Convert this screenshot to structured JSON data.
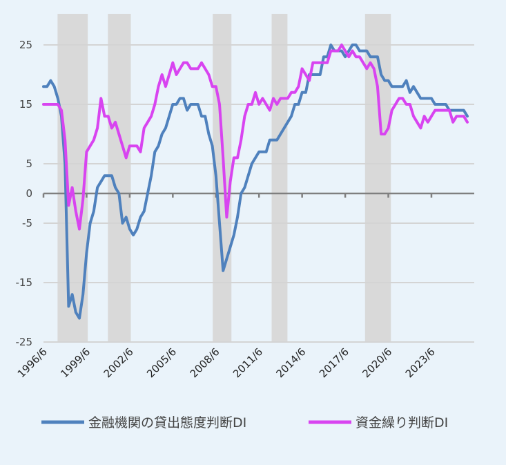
{
  "chart_data": {
    "type": "line",
    "title": "",
    "xlabel": "",
    "ylabel": "",
    "ylim": [
      -25,
      30
    ],
    "yticks": [
      25,
      15,
      5,
      0,
      -5,
      -15,
      -25
    ],
    "xlim": [
      1996.42,
      2026.4
    ],
    "xticks": [
      {
        "label": "1996/6",
        "x": 1996.42
      },
      {
        "label": "1999/6",
        "x": 1999.42
      },
      {
        "label": "2002/6",
        "x": 2002.42
      },
      {
        "label": "2005/6",
        "x": 2005.42
      },
      {
        "label": "2008/6",
        "x": 2008.42
      },
      {
        "label": "2011/6",
        "x": 2011.42
      },
      {
        "label": "2014/6",
        "x": 2014.42
      },
      {
        "label": "2017/6",
        "x": 2017.42
      },
      {
        "label": "2020/6",
        "x": 2020.42
      },
      {
        "label": "2023/6",
        "x": 2023.42
      }
    ],
    "recessions": [
      [
        1997.4,
        1999.5
      ],
      [
        2000.9,
        2002.5
      ],
      [
        2008.2,
        2009.5
      ],
      [
        2012.3,
        2013.4
      ],
      [
        2018.8,
        2020.6
      ]
    ],
    "legend": "bottom",
    "series": [
      {
        "name": "金融機関の貸出態度判断DI",
        "color": "#4f81bd",
        "points": [
          [
            1996.42,
            18
          ],
          [
            1996.67,
            18
          ],
          [
            1996.92,
            19
          ],
          [
            1997.17,
            18
          ],
          [
            1997.42,
            16
          ],
          [
            1997.67,
            13
          ],
          [
            1997.92,
            5
          ],
          [
            1998.17,
            -19
          ],
          [
            1998.42,
            -17
          ],
          [
            1998.67,
            -20
          ],
          [
            1998.92,
            -21
          ],
          [
            1999.17,
            -17
          ],
          [
            1999.42,
            -10
          ],
          [
            1999.67,
            -5
          ],
          [
            1999.92,
            -3
          ],
          [
            2000.17,
            1
          ],
          [
            2000.42,
            2
          ],
          [
            2000.67,
            3
          ],
          [
            2000.92,
            3
          ],
          [
            2001.17,
            3
          ],
          [
            2001.42,
            1
          ],
          [
            2001.67,
            0
          ],
          [
            2001.92,
            -5
          ],
          [
            2002.17,
            -4
          ],
          [
            2002.42,
            -6
          ],
          [
            2002.67,
            -7
          ],
          [
            2002.92,
            -6
          ],
          [
            2003.17,
            -4
          ],
          [
            2003.42,
            -3
          ],
          [
            2003.67,
            0
          ],
          [
            2003.92,
            3
          ],
          [
            2004.17,
            7
          ],
          [
            2004.42,
            8
          ],
          [
            2004.67,
            10
          ],
          [
            2004.92,
            11
          ],
          [
            2005.17,
            13
          ],
          [
            2005.42,
            15
          ],
          [
            2005.67,
            15
          ],
          [
            2005.92,
            16
          ],
          [
            2006.17,
            16
          ],
          [
            2006.42,
            14
          ],
          [
            2006.67,
            15
          ],
          [
            2006.92,
            15
          ],
          [
            2007.17,
            15
          ],
          [
            2007.42,
            13
          ],
          [
            2007.67,
            13
          ],
          [
            2007.92,
            10
          ],
          [
            2008.17,
            8
          ],
          [
            2008.42,
            3
          ],
          [
            2008.67,
            -5
          ],
          [
            2008.92,
            -13
          ],
          [
            2009.17,
            -11
          ],
          [
            2009.42,
            -9
          ],
          [
            2009.67,
            -7
          ],
          [
            2009.92,
            -4
          ],
          [
            2010.17,
            0
          ],
          [
            2010.42,
            1
          ],
          [
            2010.67,
            3
          ],
          [
            2010.92,
            5
          ],
          [
            2011.17,
            6
          ],
          [
            2011.42,
            7
          ],
          [
            2011.67,
            7
          ],
          [
            2011.92,
            7
          ],
          [
            2012.17,
            9
          ],
          [
            2012.42,
            9
          ],
          [
            2012.67,
            9
          ],
          [
            2012.92,
            10
          ],
          [
            2013.17,
            11
          ],
          [
            2013.42,
            12
          ],
          [
            2013.67,
            13
          ],
          [
            2013.92,
            15
          ],
          [
            2014.17,
            15
          ],
          [
            2014.42,
            17
          ],
          [
            2014.67,
            17
          ],
          [
            2014.92,
            20
          ],
          [
            2015.17,
            20
          ],
          [
            2015.42,
            20
          ],
          [
            2015.67,
            20
          ],
          [
            2015.92,
            23
          ],
          [
            2016.17,
            23
          ],
          [
            2016.42,
            25
          ],
          [
            2016.67,
            24
          ],
          [
            2016.92,
            24
          ],
          [
            2017.17,
            24
          ],
          [
            2017.42,
            23
          ],
          [
            2017.67,
            24
          ],
          [
            2017.92,
            25
          ],
          [
            2018.17,
            25
          ],
          [
            2018.42,
            24
          ],
          [
            2018.67,
            24
          ],
          [
            2018.92,
            24
          ],
          [
            2019.17,
            23
          ],
          [
            2019.42,
            23
          ],
          [
            2019.67,
            23
          ],
          [
            2019.92,
            20
          ],
          [
            2020.17,
            19
          ],
          [
            2020.42,
            19
          ],
          [
            2020.67,
            18
          ],
          [
            2020.92,
            18
          ],
          [
            2021.17,
            18
          ],
          [
            2021.42,
            18
          ],
          [
            2021.67,
            19
          ],
          [
            2021.92,
            17
          ],
          [
            2022.17,
            18
          ],
          [
            2022.42,
            17
          ],
          [
            2022.67,
            16
          ],
          [
            2022.92,
            16
          ],
          [
            2023.17,
            16
          ],
          [
            2023.42,
            16
          ],
          [
            2023.67,
            15
          ],
          [
            2023.92,
            15
          ],
          [
            2024.17,
            15
          ],
          [
            2024.42,
            15
          ],
          [
            2024.67,
            14
          ],
          [
            2024.92,
            14
          ],
          [
            2025.17,
            14
          ],
          [
            2025.42,
            14
          ],
          [
            2025.67,
            14
          ],
          [
            2025.92,
            13
          ]
        ]
      },
      {
        "name": "資金繰り判断DI",
        "color": "#d844f0",
        "points": [
          [
            1996.42,
            15
          ],
          [
            1996.67,
            15
          ],
          [
            1996.92,
            15
          ],
          [
            1997.17,
            15
          ],
          [
            1997.42,
            15
          ],
          [
            1997.67,
            14
          ],
          [
            1997.92,
            9
          ],
          [
            1998.17,
            -2
          ],
          [
            1998.42,
            1
          ],
          [
            1998.67,
            -3
          ],
          [
            1998.92,
            -6
          ],
          [
            1999.17,
            -1
          ],
          [
            1999.42,
            7
          ],
          [
            1999.67,
            8
          ],
          [
            1999.92,
            9
          ],
          [
            2000.17,
            11
          ],
          [
            2000.42,
            16
          ],
          [
            2000.67,
            13
          ],
          [
            2000.92,
            13
          ],
          [
            2001.17,
            11
          ],
          [
            2001.42,
            12
          ],
          [
            2001.67,
            10
          ],
          [
            2001.92,
            8
          ],
          [
            2002.17,
            6
          ],
          [
            2002.42,
            8
          ],
          [
            2002.67,
            8
          ],
          [
            2002.92,
            8
          ],
          [
            2003.17,
            7
          ],
          [
            2003.42,
            11
          ],
          [
            2003.67,
            12
          ],
          [
            2003.92,
            13
          ],
          [
            2004.17,
            15
          ],
          [
            2004.42,
            18
          ],
          [
            2004.67,
            20
          ],
          [
            2004.92,
            18
          ],
          [
            2005.17,
            20
          ],
          [
            2005.42,
            22
          ],
          [
            2005.67,
            20
          ],
          [
            2005.92,
            21
          ],
          [
            2006.17,
            22
          ],
          [
            2006.42,
            22
          ],
          [
            2006.67,
            21
          ],
          [
            2006.92,
            21
          ],
          [
            2007.17,
            21
          ],
          [
            2007.42,
            22
          ],
          [
            2007.67,
            21
          ],
          [
            2007.92,
            20
          ],
          [
            2008.17,
            18
          ],
          [
            2008.42,
            18
          ],
          [
            2008.67,
            15
          ],
          [
            2008.92,
            6
          ],
          [
            2009.17,
            -4
          ],
          [
            2009.42,
            2
          ],
          [
            2009.67,
            6
          ],
          [
            2009.92,
            6
          ],
          [
            2010.17,
            9
          ],
          [
            2010.42,
            13
          ],
          [
            2010.67,
            15
          ],
          [
            2010.92,
            15
          ],
          [
            2011.17,
            17
          ],
          [
            2011.42,
            15
          ],
          [
            2011.67,
            16
          ],
          [
            2011.92,
            15
          ],
          [
            2012.17,
            14
          ],
          [
            2012.42,
            16
          ],
          [
            2012.67,
            15
          ],
          [
            2012.92,
            16
          ],
          [
            2013.17,
            16
          ],
          [
            2013.42,
            16
          ],
          [
            2013.67,
            17
          ],
          [
            2013.92,
            17
          ],
          [
            2014.17,
            18
          ],
          [
            2014.42,
            21
          ],
          [
            2014.67,
            20
          ],
          [
            2014.92,
            19
          ],
          [
            2015.17,
            22
          ],
          [
            2015.42,
            22
          ],
          [
            2015.67,
            22
          ],
          [
            2015.92,
            22
          ],
          [
            2016.17,
            22
          ],
          [
            2016.42,
            24
          ],
          [
            2016.67,
            24
          ],
          [
            2016.92,
            24
          ],
          [
            2017.17,
            25
          ],
          [
            2017.42,
            24
          ],
          [
            2017.67,
            23
          ],
          [
            2017.92,
            24
          ],
          [
            2018.17,
            23
          ],
          [
            2018.42,
            23
          ],
          [
            2018.67,
            22
          ],
          [
            2018.92,
            21
          ],
          [
            2019.17,
            22
          ],
          [
            2019.42,
            21
          ],
          [
            2019.67,
            18
          ],
          [
            2019.92,
            10
          ],
          [
            2020.17,
            10
          ],
          [
            2020.42,
            11
          ],
          [
            2020.67,
            14
          ],
          [
            2020.92,
            15
          ],
          [
            2021.17,
            16
          ],
          [
            2021.42,
            16
          ],
          [
            2021.67,
            15
          ],
          [
            2021.92,
            15
          ],
          [
            2022.17,
            13
          ],
          [
            2022.42,
            12
          ],
          [
            2022.67,
            11
          ],
          [
            2022.92,
            13
          ],
          [
            2023.17,
            12
          ],
          [
            2023.42,
            13
          ],
          [
            2023.67,
            14
          ],
          [
            2023.92,
            14
          ],
          [
            2024.17,
            14
          ],
          [
            2024.42,
            14
          ],
          [
            2024.67,
            14
          ],
          [
            2024.92,
            12
          ],
          [
            2025.17,
            13
          ],
          [
            2025.42,
            13
          ],
          [
            2025.67,
            13
          ],
          [
            2025.92,
            12
          ]
        ]
      }
    ]
  }
}
